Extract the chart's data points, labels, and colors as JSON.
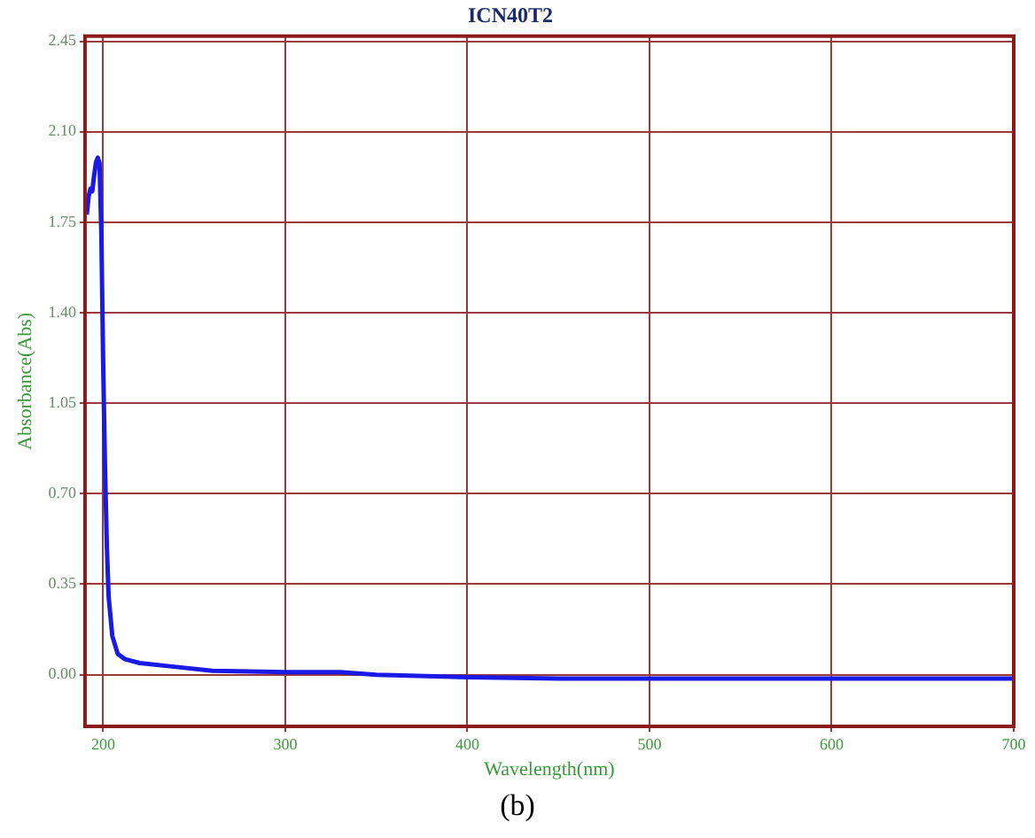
{
  "chart_data": {
    "type": "line",
    "title": "ICN40T2",
    "xlabel": "Wavelength(nm)",
    "ylabel": "Absorbance(Abs)",
    "x": [
      191,
      192,
      193,
      194,
      195,
      196,
      197,
      198,
      199,
      200,
      201,
      202,
      203,
      205,
      208,
      212,
      220,
      240,
      260,
      300,
      330,
      350,
      400,
      450,
      500,
      600,
      700
    ],
    "series": [
      {
        "color": "#1a1ae6",
        "values": [
          1.78,
          1.85,
          1.88,
          1.87,
          1.93,
          1.98,
          2.0,
          1.98,
          1.7,
          1.2,
          0.8,
          0.5,
          0.3,
          0.15,
          0.08,
          0.06,
          0.045,
          0.03,
          0.015,
          0.01,
          0.01,
          0.0,
          -0.01,
          -0.015,
          -0.015,
          -0.015,
          -0.015
        ]
      }
    ],
    "xlim": [
      190,
      700
    ],
    "xticks": [
      200,
      300,
      400,
      500,
      600,
      700
    ],
    "ylim": [
      -0.2,
      2.47
    ],
    "yticks": [
      {
        "value": 0,
        "label": "0.00"
      },
      0.35,
      {
        "value": 0.7,
        "label": "0.70"
      },
      1.05,
      {
        "value": 1.4,
        "label": "1.40"
      },
      1.75,
      {
        "value": 2.1,
        "label": "2.10"
      },
      2.45
    ],
    "grid": true,
    "legend": false,
    "marker": "none",
    "line_style": "solid",
    "annotations": [
      "(b)"
    ]
  }
}
